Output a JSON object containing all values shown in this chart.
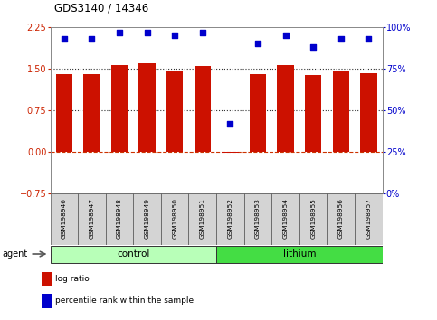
{
  "title": "GDS3140 / 14346",
  "samples": [
    "GSM198946",
    "GSM198947",
    "GSM198948",
    "GSM198949",
    "GSM198950",
    "GSM198951",
    "GSM198952",
    "GSM198953",
    "GSM198954",
    "GSM198955",
    "GSM198956",
    "GSM198957"
  ],
  "log_ratio": [
    1.4,
    1.4,
    1.57,
    1.6,
    1.45,
    1.55,
    -0.02,
    1.4,
    1.57,
    1.38,
    1.47,
    1.42
  ],
  "percentile_rank": [
    93,
    93,
    97,
    97,
    95,
    97,
    42,
    90,
    95,
    88,
    93,
    93
  ],
  "groups": [
    {
      "label": "control",
      "start": 0,
      "end": 5,
      "color": "#b8ffb8"
    },
    {
      "label": "lithium",
      "start": 6,
      "end": 11,
      "color": "#44dd44"
    }
  ],
  "bar_color": "#cc1100",
  "dot_color": "#0000cc",
  "ylim_left": [
    -0.75,
    2.25
  ],
  "ylim_right": [
    0,
    100
  ],
  "yticks_left": [
    -0.75,
    0,
    0.75,
    1.5,
    2.25
  ],
  "yticks_right": [
    0,
    25,
    50,
    75,
    100
  ],
  "hlines": [
    0.75,
    1.5
  ],
  "hline_zero_color": "#cc3300",
  "background_color": "#ffffff",
  "plot_bg": "#ffffff",
  "box_color": "#d4d4d4",
  "bar_width": 0.6,
  "agent_label": "agent",
  "legend_items": [
    {
      "label": "log ratio",
      "color": "#cc1100"
    },
    {
      "label": "percentile rank within the sample",
      "color": "#0000cc"
    }
  ]
}
